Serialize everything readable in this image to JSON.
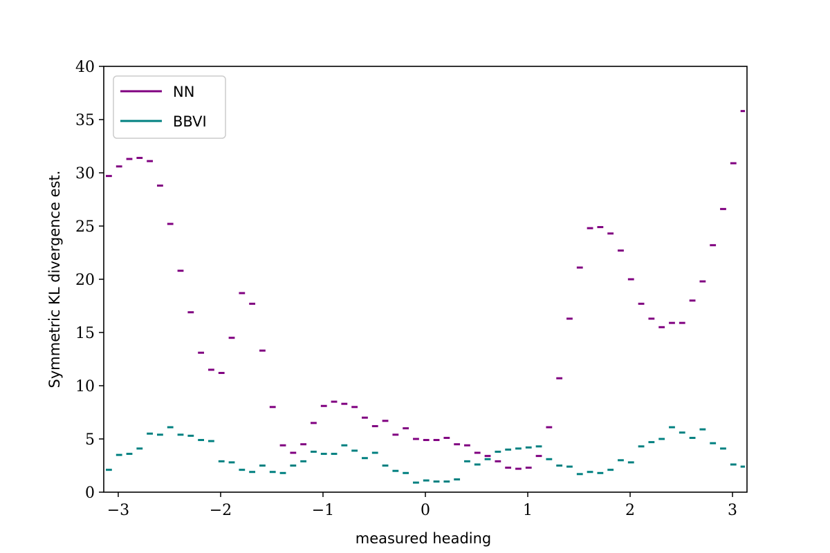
{
  "chart_data": {
    "type": "line",
    "title": "",
    "xlabel": "measured heading",
    "ylabel": "Symmetric KL divergence est.",
    "xlim": [
      -3.1416,
      3.1416
    ],
    "ylim": [
      0,
      40
    ],
    "xticks": [
      {
        "value": -3,
        "label": "−3"
      },
      {
        "value": -2,
        "label": "−2"
      },
      {
        "value": -1,
        "label": "−1"
      },
      {
        "value": 0,
        "label": "0"
      },
      {
        "value": 1,
        "label": "1"
      },
      {
        "value": 2,
        "label": "2"
      },
      {
        "value": 3,
        "label": "3"
      }
    ],
    "yticks": [
      {
        "value": 0,
        "label": "0"
      },
      {
        "value": 5,
        "label": "5"
      },
      {
        "value": 10,
        "label": "10"
      },
      {
        "value": 15,
        "label": "15"
      },
      {
        "value": 20,
        "label": "20"
      },
      {
        "value": 25,
        "label": "25"
      },
      {
        "value": 30,
        "label": "30"
      },
      {
        "value": 35,
        "label": "35"
      },
      {
        "value": 40,
        "label": "40"
      }
    ],
    "grid": false,
    "legend_position": "top-left",
    "step_style": "horizontal segments per bin",
    "bin_edges": [
      -3.1416,
      -3.0416,
      -2.9416,
      -2.8416,
      -2.7416,
      -2.6416,
      -2.5416,
      -2.4416,
      -2.3416,
      -2.2416,
      -2.1416,
      -2.0416,
      -1.9416,
      -1.8416,
      -1.7416,
      -1.6416,
      -1.5416,
      -1.4416,
      -1.3416,
      -1.2416,
      -1.1416,
      -1.0416,
      -0.9416,
      -0.8416,
      -0.7416,
      -0.6416,
      -0.5416,
      -0.4416,
      -0.3416,
      -0.2416,
      -0.1416,
      -0.0416,
      0.0584,
      0.1584,
      0.2584,
      0.3584,
      0.4584,
      0.5584,
      0.6584,
      0.7584,
      0.8584,
      0.9584,
      1.0584,
      1.1584,
      1.2584,
      1.3584,
      1.4584,
      1.5584,
      1.6584,
      1.7584,
      1.8584,
      1.9584,
      2.0584,
      2.1584,
      2.2584,
      2.3584,
      2.4584,
      2.5584,
      2.6584,
      2.7584,
      2.8584,
      2.9584,
      3.0584,
      3.1416
    ],
    "series": [
      {
        "name": "NN",
        "color": "#800080",
        "values": [
          29.7,
          30.6,
          31.3,
          31.4,
          31.1,
          28.8,
          25.2,
          20.8,
          16.9,
          13.1,
          11.5,
          11.2,
          14.5,
          18.7,
          17.7,
          13.3,
          8.0,
          4.4,
          3.7,
          4.5,
          6.5,
          8.1,
          8.5,
          8.3,
          8.0,
          7.0,
          6.2,
          6.7,
          5.4,
          6.0,
          5.0,
          4.9,
          4.9,
          5.1,
          4.5,
          4.4,
          3.7,
          3.4,
          2.9,
          2.3,
          2.2,
          2.3,
          3.4,
          6.1,
          10.7,
          16.3,
          21.1,
          24.8,
          24.9,
          24.3,
          22.7,
          20.0,
          17.7,
          16.3,
          15.5,
          15.9,
          15.9,
          18.0,
          19.8,
          23.2,
          26.6,
          30.9,
          35.8,
          36.0
        ]
      },
      {
        "name": "BBVI",
        "color": "#008080",
        "values": [
          2.1,
          3.5,
          3.6,
          4.1,
          5.5,
          5.4,
          6.1,
          5.4,
          5.3,
          4.9,
          4.8,
          2.9,
          2.8,
          2.1,
          1.9,
          2.5,
          1.9,
          1.8,
          2.5,
          2.9,
          3.8,
          3.6,
          3.6,
          4.4,
          3.9,
          3.2,
          3.7,
          2.5,
          2.0,
          1.8,
          0.9,
          1.1,
          1.0,
          1.0,
          1.2,
          2.9,
          2.6,
          3.1,
          3.8,
          4.0,
          4.1,
          4.2,
          4.3,
          3.1,
          2.5,
          2.4,
          1.7,
          1.9,
          1.8,
          2.1,
          3.0,
          2.8,
          4.3,
          4.7,
          5.0,
          6.1,
          5.6,
          5.1,
          5.9,
          4.6,
          4.1,
          2.6,
          2.4,
          2.5
        ]
      }
    ]
  }
}
